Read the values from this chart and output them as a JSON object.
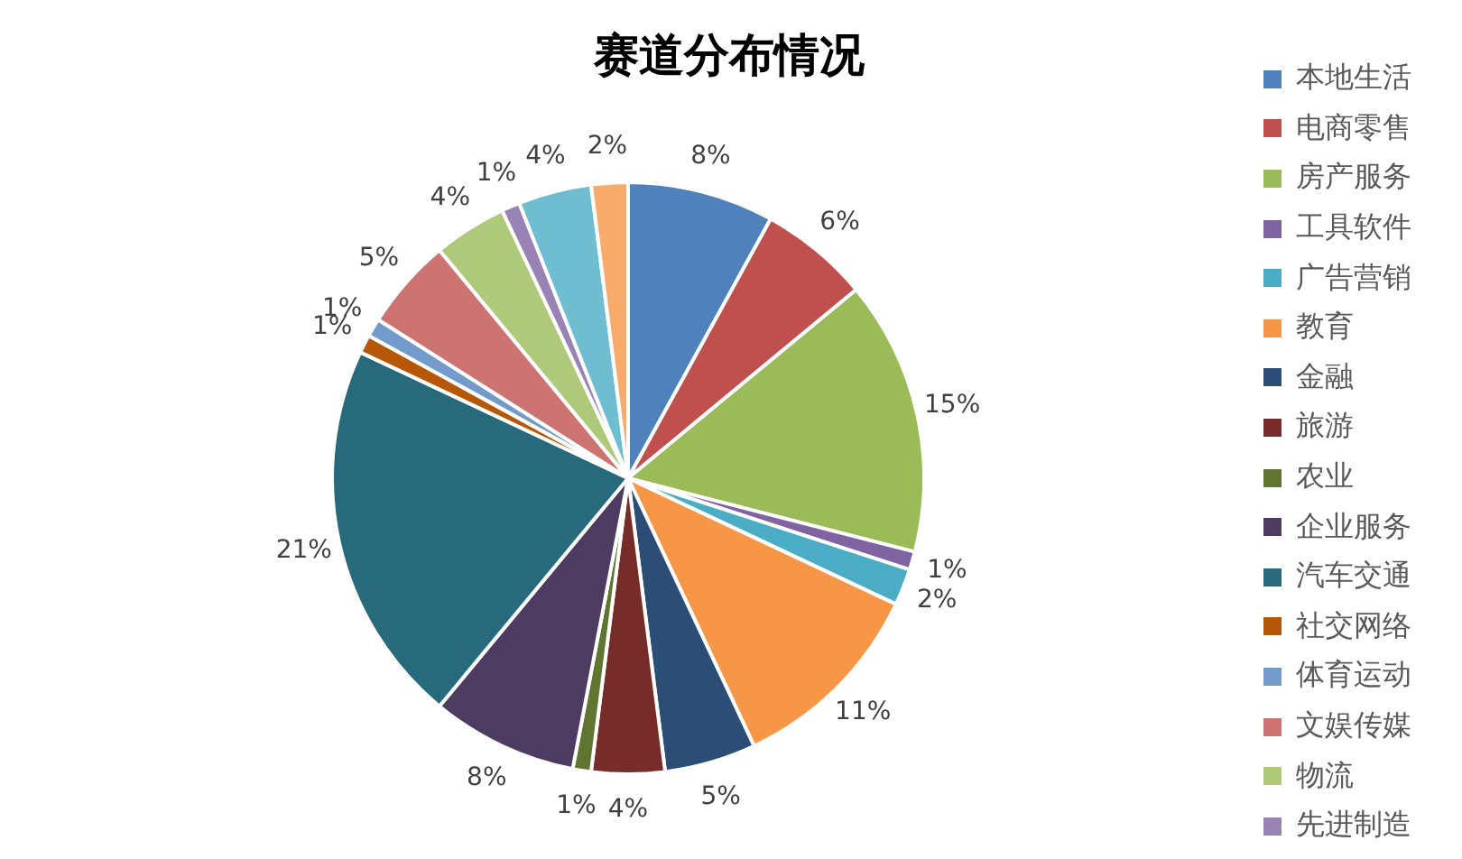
{
  "chart_data": {
    "type": "pie",
    "title": "赛道分布情况",
    "categories": [
      "本地生活",
      "电商零售",
      "房产服务",
      "工具软件",
      "广告营销",
      "教育",
      "金融",
      "旅游",
      "农业",
      "企业服务",
      "汽车交通",
      "社交网络",
      "体育运动",
      "文娱传媒",
      "物流",
      "先进制造",
      null,
      null
    ],
    "values": [
      8,
      6,
      15,
      1,
      2,
      11,
      5,
      4,
      1,
      8,
      21,
      1,
      1,
      5,
      4,
      1,
      4,
      2
    ],
    "value_labels": [
      "8%",
      "6%",
      "15%",
      "1%",
      "2%",
      "11%",
      "5%",
      "4%",
      "1%",
      "8%",
      "21%",
      "1%",
      "1%",
      "5%",
      "4%",
      "1%",
      "4%",
      "2%"
    ],
    "colors": [
      "#4f81bd",
      "#c0504d",
      "#9bbb59",
      "#8064a2",
      "#4bacc6",
      "#f79646",
      "#2c4d75",
      "#772c2a",
      "#5f7530",
      "#4d3b62",
      "#276a7c",
      "#b65708",
      "#729aca",
      "#cd7371",
      "#afc97a",
      "#9983b5",
      "#6fbdd1",
      "#f9ab6b"
    ],
    "legend": "right"
  }
}
